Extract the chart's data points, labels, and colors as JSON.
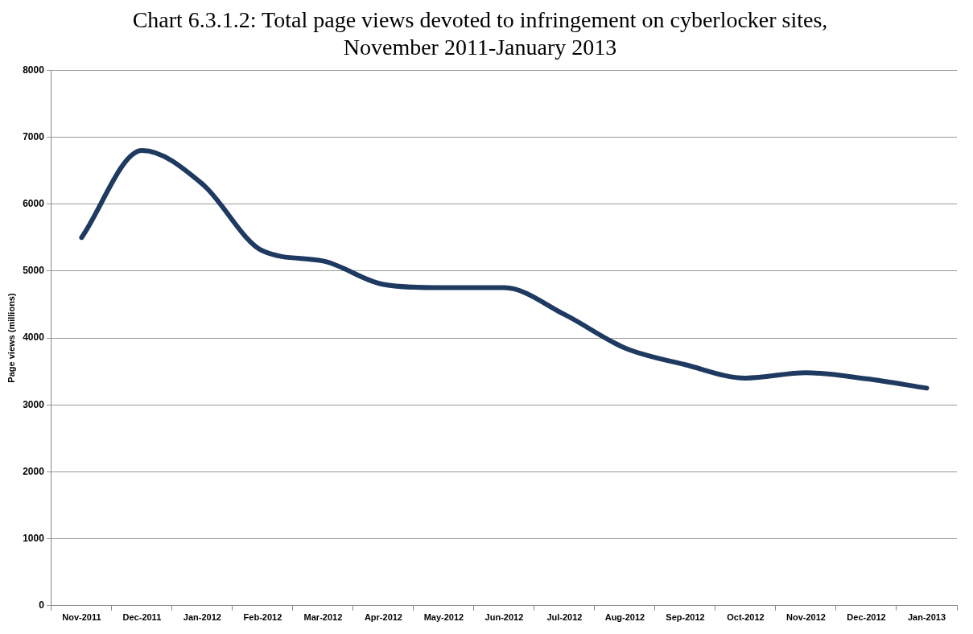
{
  "chart_data": {
    "type": "line",
    "title": "Chart 6.3.1.2: Total page views devoted to infringement on cyberlocker sites, November 2011-January 2013",
    "ylabel": "Page views (millions)",
    "categories": [
      "Nov-2011",
      "Dec-2011",
      "Jan-2012",
      "Feb-2012",
      "Mar-2012",
      "Apr-2012",
      "May-2012",
      "Jun-2012",
      "Jul-2012",
      "Aug-2012",
      "Sep-2012",
      "Oct-2012",
      "Nov-2012",
      "Dec-2012",
      "Jan-2013"
    ],
    "series": [
      {
        "color": "#1f3a60",
        "values": [
          5500,
          6800,
          6300,
          5300,
          5150,
          4800,
          4750,
          4750,
          4350,
          3850,
          3600,
          3400,
          3480,
          3390,
          3250
        ]
      }
    ],
    "ylim": [
      0,
      8000
    ],
    "yticks": [
      0,
      1000,
      2000,
      3000,
      4000,
      5000,
      6000,
      7000,
      8000
    ],
    "grid": "y",
    "legend": false,
    "marker": "none",
    "line_style": "solid"
  }
}
